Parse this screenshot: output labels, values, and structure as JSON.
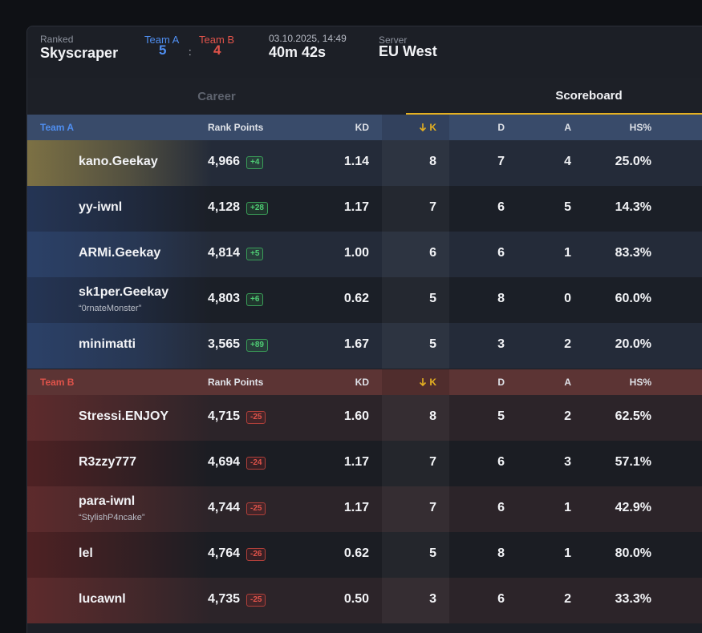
{
  "match": {
    "mode": "Ranked",
    "map": "Skyscraper",
    "teamA_label": "Team A",
    "teamA_score": "5",
    "separator": ":",
    "teamB_label": "Team B",
    "teamB_score": "4",
    "datetime": "03.10.2025, 14:49",
    "duration": "40m 42s",
    "server_label": "Server",
    "server": "EU West"
  },
  "tabs": {
    "career": "Career",
    "scoreboard": "Scoreboard",
    "active": "scoreboard"
  },
  "columns": {
    "rank_points": "Rank Points",
    "kd": "KD",
    "k": "K",
    "d": "D",
    "a": "A",
    "hs": "HS%"
  },
  "colors": {
    "teamA": "#4f8ef0",
    "teamB": "#e0534a",
    "accent": "#e5b021",
    "positive": "#4fcb74",
    "negative": "#e0534a"
  },
  "sort_icon": "arrow-down-icon",
  "teamA": {
    "label": "Team A",
    "players": [
      {
        "name": "kano.Geekay",
        "nick": "",
        "rp": "4,966",
        "delta": "+4",
        "kd": "1.14",
        "k": "8",
        "d": "7",
        "a": "4",
        "hs": "25.0%"
      },
      {
        "name": "yy-iwnl",
        "nick": "",
        "rp": "4,128",
        "delta": "+28",
        "kd": "1.17",
        "k": "7",
        "d": "6",
        "a": "5",
        "hs": "14.3%"
      },
      {
        "name": "ARMi.Geekay",
        "nick": "",
        "rp": "4,814",
        "delta": "+5",
        "kd": "1.00",
        "k": "6",
        "d": "6",
        "a": "1",
        "hs": "83.3%"
      },
      {
        "name": "sk1per.Geekay",
        "nick": "“0rnateMonster”",
        "rp": "4,803",
        "delta": "+6",
        "kd": "0.62",
        "k": "5",
        "d": "8",
        "a": "0",
        "hs": "60.0%"
      },
      {
        "name": "minimatti",
        "nick": "",
        "rp": "3,565",
        "delta": "+89",
        "kd": "1.67",
        "k": "5",
        "d": "3",
        "a": "2",
        "hs": "20.0%"
      }
    ]
  },
  "teamB": {
    "label": "Team B",
    "players": [
      {
        "name": "Stressi.ENJOY",
        "nick": "",
        "rp": "4,715",
        "delta": "-25",
        "kd": "1.60",
        "k": "8",
        "d": "5",
        "a": "2",
        "hs": "62.5%"
      },
      {
        "name": "R3zzy777",
        "nick": "",
        "rp": "4,694",
        "delta": "-24",
        "kd": "1.17",
        "k": "7",
        "d": "6",
        "a": "3",
        "hs": "57.1%"
      },
      {
        "name": "para-iwnl",
        "nick": "“StylishP4ncake”",
        "rp": "4,744",
        "delta": "-25",
        "kd": "1.17",
        "k": "7",
        "d": "6",
        "a": "1",
        "hs": "42.9%"
      },
      {
        "name": "lel",
        "nick": "",
        "rp": "4,764",
        "delta": "-26",
        "kd": "0.62",
        "k": "5",
        "d": "8",
        "a": "1",
        "hs": "80.0%"
      },
      {
        "name": "lucawnl",
        "nick": "",
        "rp": "4,735",
        "delta": "-25",
        "kd": "0.50",
        "k": "3",
        "d": "6",
        "a": "2",
        "hs": "33.3%"
      }
    ]
  }
}
